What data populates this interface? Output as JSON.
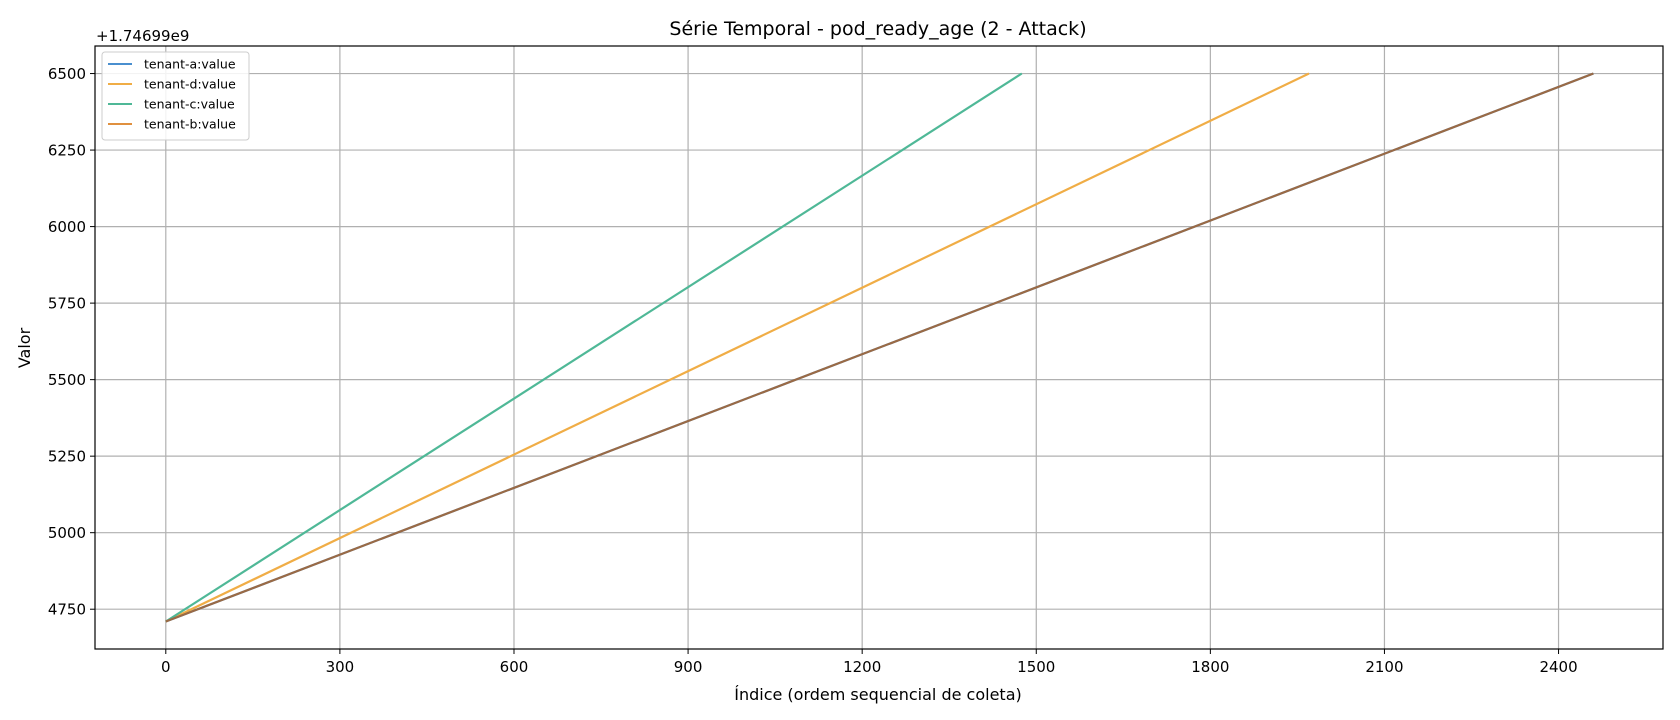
{
  "chart_data": {
    "type": "line",
    "title": "Série Temporal - pod_ready_age (2 - Attack)",
    "xlabel": "Índice (ordem sequencial de coleta)",
    "ylabel": "Valor",
    "y_offset_label": "+1.74699e9",
    "xlim": [
      -122,
      2580
    ],
    "ylim": [
      4620,
      6590
    ],
    "x_ticks": [
      0,
      300,
      600,
      900,
      1200,
      1500,
      1800,
      2100,
      2400
    ],
    "y_ticks": [
      4750,
      5000,
      5250,
      5500,
      5750,
      6000,
      6250,
      6500
    ],
    "grid": true,
    "legend_position": "top-left",
    "series": [
      {
        "name": "tenant-a:value",
        "color": "#4a8fcf",
        "x": [
          0,
          2460
        ],
        "y": [
          4710,
          6500
        ]
      },
      {
        "name": "tenant-d:value",
        "color": "#f0ad46",
        "x": [
          0,
          1970
        ],
        "y": [
          4710,
          6500
        ]
      },
      {
        "name": "tenant-c:value",
        "color": "#4fb897",
        "x": [
          0,
          1475
        ],
        "y": [
          4710,
          6500
        ]
      },
      {
        "name": "tenant-b:value",
        "color": "#9a6a45",
        "x": [
          0,
          2460
        ],
        "y": [
          4710,
          6500
        ]
      }
    ],
    "legend": [
      {
        "name": "tenant-a:value",
        "color": "#4a8fcf"
      },
      {
        "name": "tenant-d:value",
        "color": "#f0ad46"
      },
      {
        "name": "tenant-c:value",
        "color": "#4fb897"
      },
      {
        "name": "tenant-b:value",
        "color": "#e0903f"
      }
    ]
  }
}
